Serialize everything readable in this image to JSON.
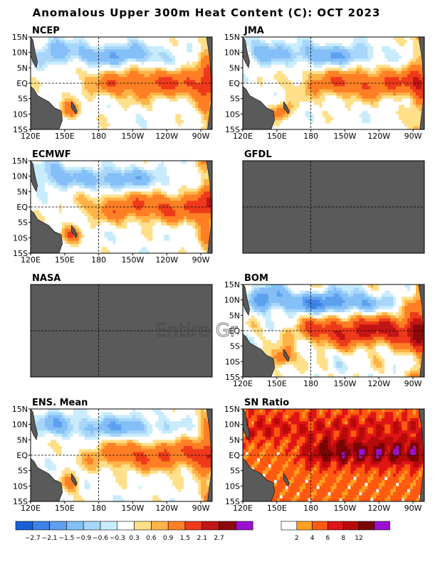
{
  "figure": {
    "title": "Anomalous Upper 300m Heat Content (C): OCT 2023",
    "missing_panel_note": "Entire Gr"
  },
  "axes": {
    "lat_ticks": [
      "15N",
      "10N",
      "5N",
      "EQ",
      "5S",
      "10S",
      "15S"
    ],
    "lon_ticks": [
      "120E",
      "150E",
      "180",
      "150W",
      "120W",
      "90W"
    ]
  },
  "colors": {
    "land": "#5a5a5a",
    "missing_panel": "#5a5a5a",
    "frame": "#000000"
  },
  "chart_data": [
    {
      "type": "heatmap",
      "panel": "NCEP",
      "has_data": true,
      "variable": "heat content anomaly (C)",
      "region": "tropical Pacific, 120E-80W, 15S-15N",
      "colorbar": "anomaly"
    },
    {
      "type": "heatmap",
      "panel": "JMA",
      "has_data": true,
      "variable": "heat content anomaly (C)",
      "region": "tropical Pacific, 120E-80W, 15S-15N",
      "colorbar": "anomaly"
    },
    {
      "type": "heatmap",
      "panel": "ECMWF",
      "has_data": true,
      "variable": "heat content anomaly (C)",
      "region": "tropical Pacific, 120E-80W, 15S-15N",
      "colorbar": "anomaly"
    },
    {
      "type": "heatmap",
      "panel": "GFDL",
      "has_data": false,
      "variable": "heat content anomaly (C)",
      "colorbar": "anomaly"
    },
    {
      "type": "heatmap",
      "panel": "NASA",
      "has_data": false,
      "variable": "heat content anomaly (C)",
      "colorbar": "anomaly"
    },
    {
      "type": "heatmap",
      "panel": "BOM",
      "has_data": true,
      "variable": "heat content anomaly (C)",
      "region": "tropical Pacific, 120E-80W, 15S-15N",
      "colorbar": "anomaly"
    },
    {
      "type": "heatmap",
      "panel": "ENS. Mean",
      "has_data": true,
      "variable": "heat content anomaly (C)",
      "region": "tropical Pacific, 120E-80W, 15S-15N",
      "colorbar": "anomaly"
    },
    {
      "type": "heatmap",
      "panel": "SN Ratio",
      "has_data": true,
      "variable": "signal-to-noise ratio",
      "region": "tropical Pacific, 120E-80W, 15S-15N",
      "colorbar": "sn"
    }
  ],
  "colorbar_anomaly": {
    "bins": [
      "#1a5fd6",
      "#3c82e6",
      "#5ea0f0",
      "#84bff7",
      "#a8d6fa",
      "#c8ecfc",
      "#ffffff",
      "#ffe08a",
      "#ffb347",
      "#ff7f24",
      "#ee3a1b",
      "#c21515",
      "#8b0a0a",
      "#9b10d0"
    ],
    "labels": [
      "−2.7",
      "−2.1",
      "−1.5",
      "−0.9",
      "−0.6",
      "−0.3",
      "0.3",
      "0.6",
      "0.9",
      "1.5",
      "2.1",
      "2.7"
    ]
  },
  "colorbar_sn": {
    "bins": [
      "#ffffff",
      "#ffa020",
      "#ff5a10",
      "#e01515",
      "#b80a0a",
      "#7a0505",
      "#9b10d0"
    ],
    "labels": [
      "2",
      "4",
      "6",
      "8",
      "12"
    ]
  }
}
